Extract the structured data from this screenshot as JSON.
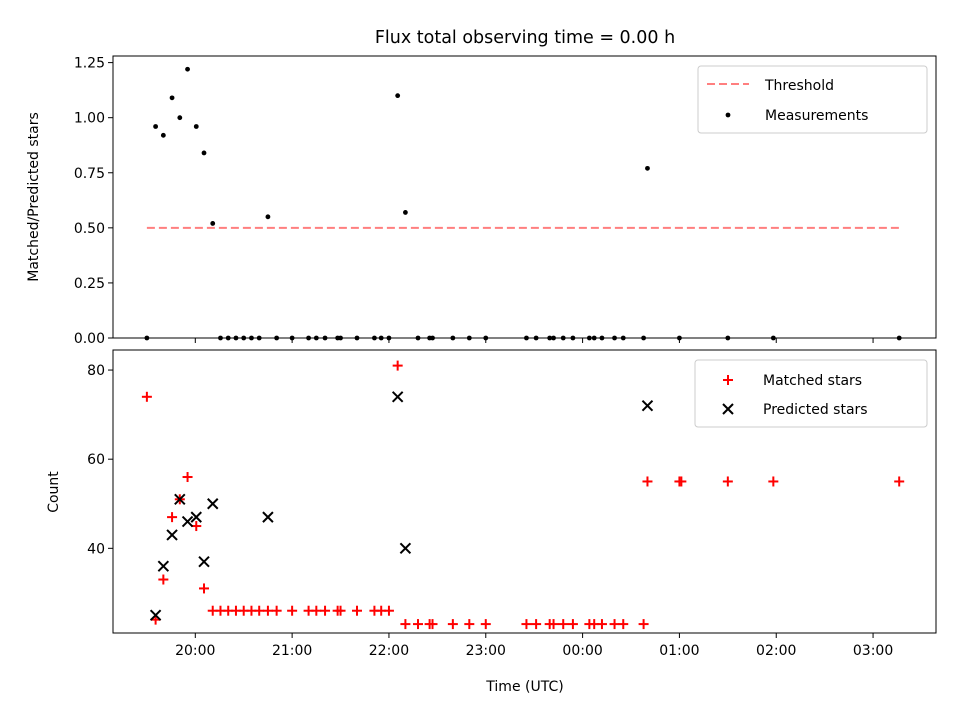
{
  "title": "Flux total observing time = 0.00 h",
  "chart_data": [
    {
      "type": "scatter",
      "xlabel": "",
      "ylabel": "Matched/Predicted stars",
      "xlim": [
        19.15,
        27.65
      ],
      "ylim": [
        0.0,
        1.28
      ],
      "y_ticks": [
        0.0,
        0.25,
        0.5,
        0.75,
        1.0,
        1.25
      ],
      "y_tick_labels": [
        "0.00",
        "0.25",
        "0.50",
        "0.75",
        "1.00",
        "1.25"
      ],
      "x_ticks": [
        20,
        21,
        22,
        23,
        24,
        25,
        26,
        27
      ],
      "legend_position": "top-right",
      "legend": [
        "Threshold",
        "Measurements"
      ],
      "threshold": {
        "name": "Threshold",
        "y": 0.5,
        "x_range": [
          19.5,
          27.27
        ],
        "color": "#ff7f7f",
        "style": "dashed"
      },
      "series": [
        {
          "name": "Measurements",
          "marker": "dot",
          "color": "#000000",
          "points": [
            [
              19.5,
              0.0
            ],
            [
              19.59,
              0.96
            ],
            [
              19.67,
              0.92
            ],
            [
              19.76,
              1.09
            ],
            [
              19.84,
              1.0
            ],
            [
              19.92,
              1.22
            ],
            [
              20.01,
              0.96
            ],
            [
              20.09,
              0.84
            ],
            [
              20.18,
              0.52
            ],
            [
              20.26,
              0.0
            ],
            [
              20.34,
              0.0
            ],
            [
              20.42,
              0.0
            ],
            [
              20.5,
              0.0
            ],
            [
              20.58,
              0.0
            ],
            [
              20.66,
              0.0
            ],
            [
              20.75,
              0.55
            ],
            [
              20.84,
              0.0
            ],
            [
              21.0,
              0.0
            ],
            [
              21.17,
              0.0
            ],
            [
              21.25,
              0.0
            ],
            [
              21.34,
              0.0
            ],
            [
              21.47,
              0.0
            ],
            [
              21.5,
              0.0
            ],
            [
              21.67,
              0.0
            ],
            [
              21.85,
              0.0
            ],
            [
              21.92,
              0.0
            ],
            [
              22.0,
              0.0
            ],
            [
              22.09,
              1.1
            ],
            [
              22.17,
              0.57
            ],
            [
              22.3,
              0.0
            ],
            [
              22.42,
              0.0
            ],
            [
              22.45,
              0.0
            ],
            [
              22.66,
              0.0
            ],
            [
              22.83,
              0.0
            ],
            [
              23.0,
              0.0
            ],
            [
              23.42,
              0.0
            ],
            [
              23.52,
              0.0
            ],
            [
              23.66,
              0.0
            ],
            [
              23.7,
              0.0
            ],
            [
              23.8,
              0.0
            ],
            [
              23.9,
              0.0
            ],
            [
              24.07,
              0.0
            ],
            [
              24.12,
              0.0
            ],
            [
              24.2,
              0.0
            ],
            [
              24.33,
              0.0
            ],
            [
              24.42,
              0.0
            ],
            [
              24.63,
              0.0
            ],
            [
              24.67,
              0.77
            ],
            [
              25.0,
              0.0
            ],
            [
              25.5,
              0.0
            ],
            [
              25.97,
              0.0
            ],
            [
              27.27,
              0.0
            ]
          ]
        }
      ]
    },
    {
      "type": "scatter",
      "xlabel": "Time (UTC)",
      "ylabel": "Count",
      "xlim": [
        19.15,
        27.65
      ],
      "ylim": [
        21.0,
        84.5
      ],
      "y_ticks": [
        40,
        60,
        80
      ],
      "y_tick_labels": [
        "40",
        "60",
        "80"
      ],
      "x_ticks": [
        20,
        21,
        22,
        23,
        24,
        25,
        26,
        27
      ],
      "x_tick_labels": [
        "20:00",
        "21:00",
        "22:00",
        "23:00",
        "00:00",
        "01:00",
        "02:00",
        "03:00"
      ],
      "legend_position": "top-right",
      "legend": [
        "Matched stars",
        "Predicted stars"
      ],
      "series": [
        {
          "name": "Matched stars",
          "marker": "plus",
          "color": "#ff0000",
          "points": [
            [
              19.5,
              74
            ],
            [
              19.59,
              24
            ],
            [
              19.67,
              33
            ],
            [
              19.76,
              47
            ],
            [
              19.84,
              51
            ],
            [
              19.92,
              56
            ],
            [
              20.01,
              45
            ],
            [
              20.09,
              31
            ],
            [
              20.18,
              26
            ],
            [
              20.26,
              26
            ],
            [
              20.34,
              26
            ],
            [
              20.42,
              26
            ],
            [
              20.5,
              26
            ],
            [
              20.58,
              26
            ],
            [
              20.66,
              26
            ],
            [
              20.75,
              26
            ],
            [
              20.84,
              26
            ],
            [
              21.0,
              26
            ],
            [
              21.17,
              26
            ],
            [
              21.25,
              26
            ],
            [
              21.34,
              26
            ],
            [
              21.47,
              26
            ],
            [
              21.5,
              26
            ],
            [
              21.67,
              26
            ],
            [
              21.85,
              26
            ],
            [
              21.92,
              26
            ],
            [
              22.0,
              26
            ],
            [
              22.09,
              81
            ],
            [
              22.17,
              23
            ],
            [
              22.3,
              23
            ],
            [
              22.42,
              23
            ],
            [
              22.45,
              23
            ],
            [
              22.66,
              23
            ],
            [
              22.83,
              23
            ],
            [
              23.0,
              23
            ],
            [
              23.42,
              23
            ],
            [
              23.52,
              23
            ],
            [
              23.66,
              23
            ],
            [
              23.7,
              23
            ],
            [
              23.8,
              23
            ],
            [
              23.9,
              23
            ],
            [
              24.07,
              23
            ],
            [
              24.12,
              23
            ],
            [
              24.2,
              23
            ],
            [
              24.33,
              23
            ],
            [
              24.42,
              23
            ],
            [
              24.63,
              23
            ],
            [
              24.67,
              55
            ],
            [
              25.0,
              55
            ],
            [
              25.02,
              55
            ],
            [
              25.5,
              55
            ],
            [
              25.97,
              55
            ],
            [
              27.27,
              55
            ]
          ]
        },
        {
          "name": "Predicted stars",
          "marker": "x",
          "color": "#000000",
          "points": [
            [
              19.59,
              25
            ],
            [
              19.67,
              36
            ],
            [
              19.76,
              43
            ],
            [
              19.84,
              51
            ],
            [
              19.92,
              46
            ],
            [
              20.01,
              47
            ],
            [
              20.09,
              37
            ],
            [
              20.18,
              50
            ],
            [
              20.75,
              47
            ],
            [
              22.09,
              74
            ],
            [
              22.17,
              40
            ],
            [
              24.67,
              72
            ]
          ]
        }
      ]
    }
  ]
}
